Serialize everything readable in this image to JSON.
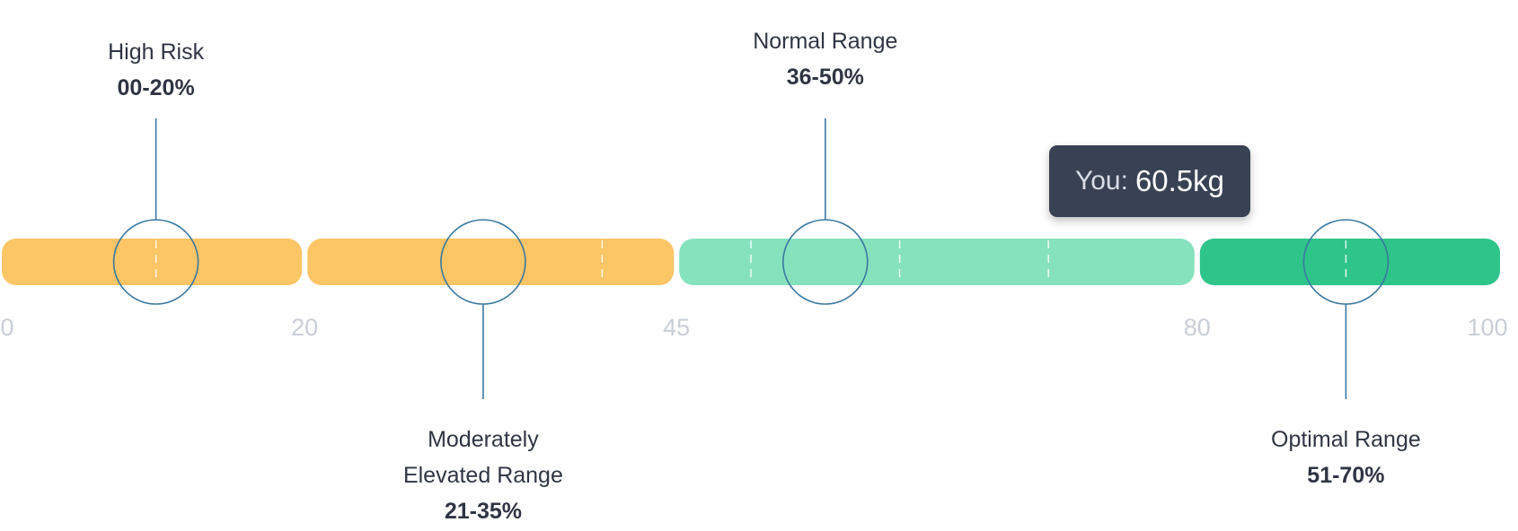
{
  "chart_data": {
    "type": "range-bar",
    "axis": {
      "min": 0,
      "max": 100,
      "ticks": [
        "0",
        "20",
        "45",
        "80",
        "100"
      ]
    },
    "segments": [
      {
        "from": 0,
        "to": 20,
        "color": "#fcc565",
        "dividers": [
          10
        ]
      },
      {
        "from": 20,
        "to": 45,
        "color": "#fcc565",
        "dividers": [
          40
        ]
      },
      {
        "from": 45,
        "to": 80,
        "color": "#86e2bd",
        "dividers": [
          50,
          60,
          70
        ]
      },
      {
        "from": 80,
        "to": 100,
        "color": "#2fc48a",
        "dividers": [
          90
        ]
      }
    ],
    "markers": [
      {
        "value": 10,
        "name_lines": [
          "High Risk"
        ],
        "range": "00-20%",
        "side": "top"
      },
      {
        "value": 32,
        "name_lines": [
          "Moderately",
          "Elevated Range"
        ],
        "range": "21-35%",
        "side": "bottom"
      },
      {
        "value": 55,
        "name_lines": [
          "Normal Range"
        ],
        "range": "36-50%",
        "side": "top"
      },
      {
        "value": 90,
        "name_lines": [
          "Optimal Range"
        ],
        "range": "51-70%",
        "side": "bottom"
      }
    ],
    "marker_color": "#3a78a0",
    "you": {
      "prefix": "You:",
      "value_text": "60.5kg"
    }
  }
}
